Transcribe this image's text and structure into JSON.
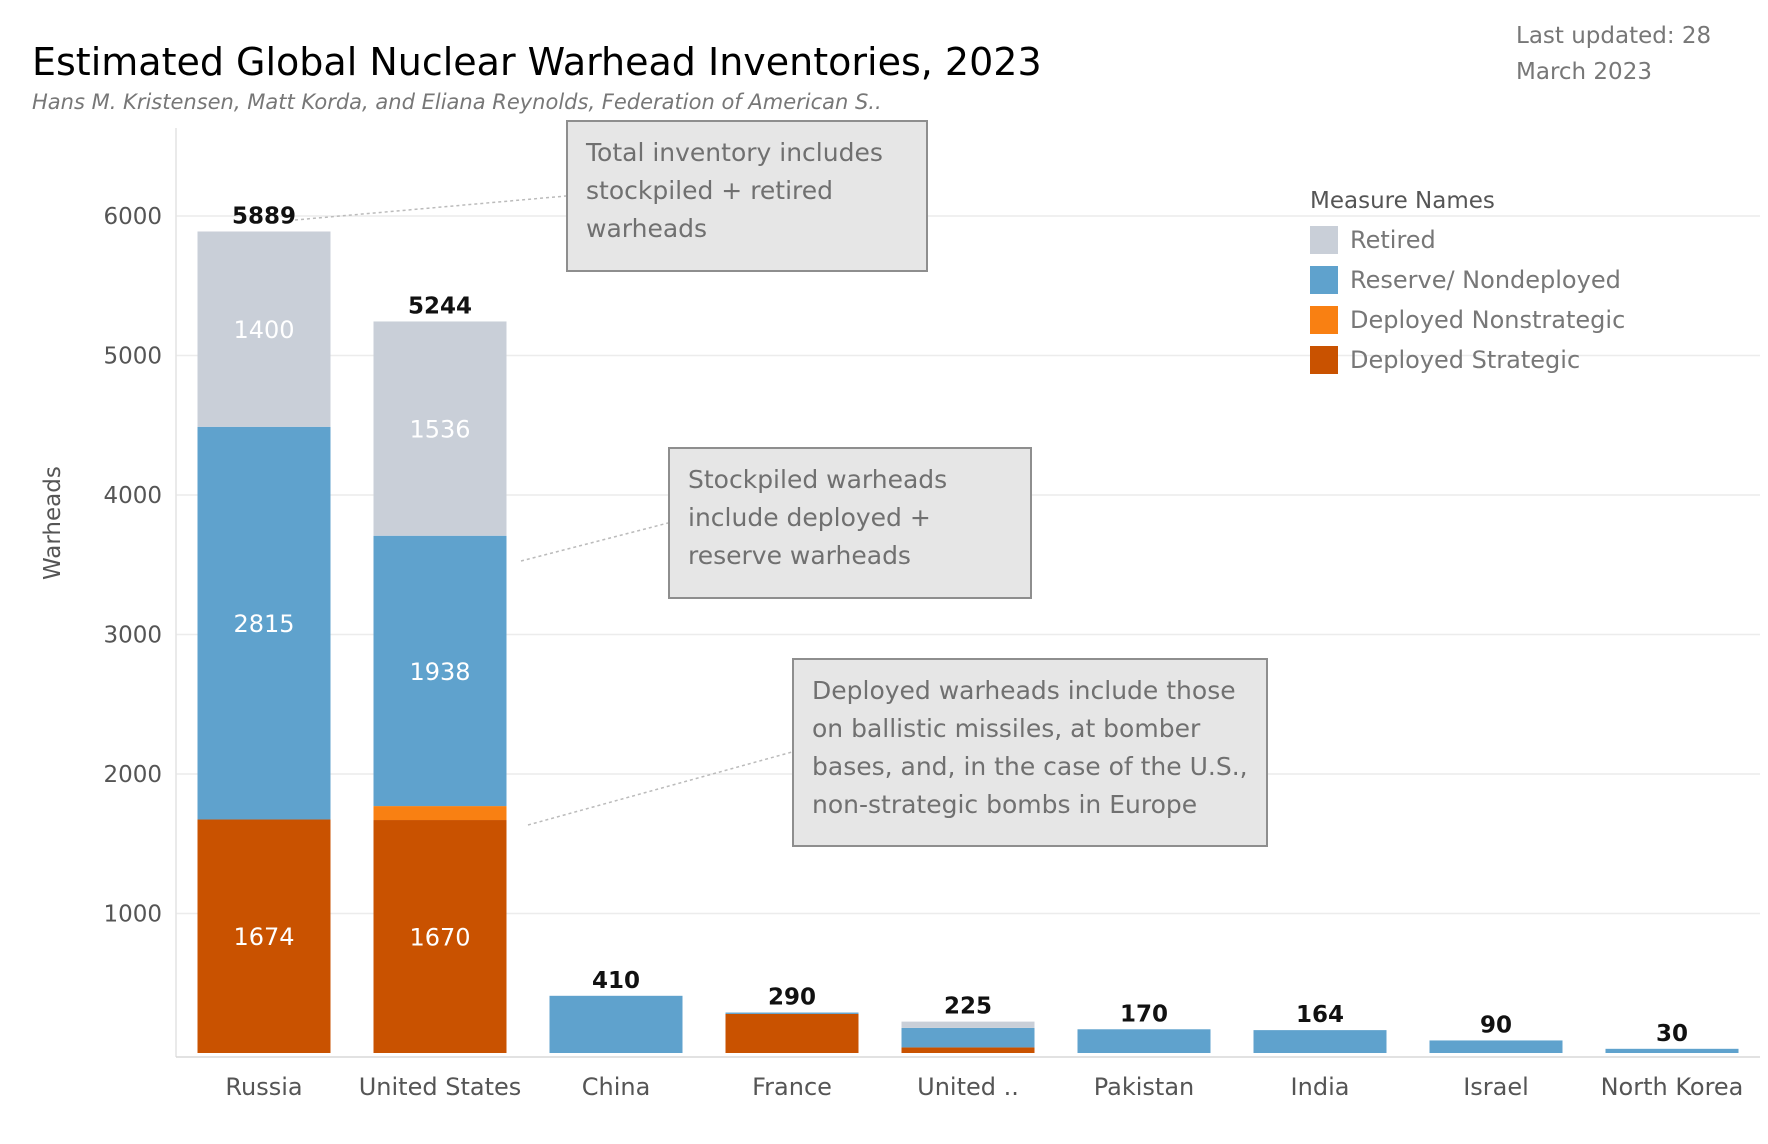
{
  "title": "Estimated Global Nuclear Warhead Inventories, 2023",
  "subtitle": "Hans M. Kristensen, Matt Korda, and Eliana Reynolds, Federation of American S..",
  "last_updated": "Last updated: 28 March 2023",
  "annotations": [
    "Total inventory includes stockpiled + retired warheads",
    "Stockpiled warheads include deployed + reserve warheads",
    "Deployed warheads include those on ballistic missiles, at bomber bases, and, in the case of the U.S., non-strategic bombs in Europe"
  ],
  "colors": {
    "retired": "#c9cfd8",
    "reserve": "#5fa2cd",
    "deployed_nonstrategic": "#f98012",
    "deployed_strategic": "#c95200",
    "grid": "#ececec",
    "axis_text": "#666666"
  },
  "chart_data": {
    "type": "bar",
    "stacked": true,
    "title": "Estimated Global Nuclear Warhead Inventories, 2023",
    "xlabel": "",
    "ylabel": "Warheads",
    "ylim": [
      0,
      6500
    ],
    "yticks": [
      1000,
      2000,
      3000,
      4000,
      5000,
      6000
    ],
    "grid": true,
    "legend_title": "Measure Names",
    "legend_position": "top-right",
    "categories": [
      "Russia",
      "United States",
      "China",
      "France",
      "United ..",
      "Pakistan",
      "India",
      "Israel",
      "North Korea"
    ],
    "series": [
      {
        "name": "Deployed Strategic",
        "key": "deployed_strategic",
        "values": [
          1674,
          1670,
          0,
          280,
          40,
          0,
          0,
          0,
          0
        ]
      },
      {
        "name": "Deployed Nonstrategic",
        "key": "deployed_nonstrategic",
        "values": [
          0,
          100,
          0,
          0,
          0,
          0,
          0,
          0,
          0
        ]
      },
      {
        "name": "Reserve/ Nondeployed",
        "key": "reserve",
        "values": [
          2815,
          1938,
          410,
          10,
          140,
          170,
          164,
          90,
          30
        ]
      },
      {
        "name": "Retired",
        "key": "retired",
        "values": [
          1400,
          1536,
          0,
          0,
          45,
          0,
          0,
          0,
          0
        ]
      }
    ],
    "totals": [
      5889,
      5244,
      410,
      290,
      225,
      170,
      164,
      90,
      30
    ],
    "segment_labels": {
      "deployed_strategic": [
        "1674",
        "1670",
        "",
        "",
        "",
        "",
        "",
        "",
        ""
      ],
      "reserve": [
        "2815",
        "1938",
        "",
        "",
        "",
        "",
        "",
        "",
        ""
      ],
      "retired": [
        "1400",
        "1536",
        "",
        "",
        "",
        "",
        "",
        "",
        ""
      ]
    }
  }
}
